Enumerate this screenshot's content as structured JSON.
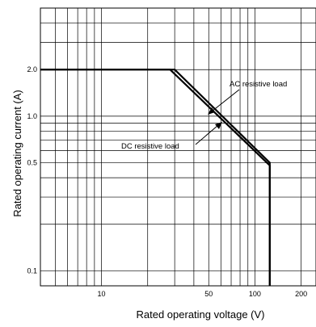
{
  "chart_data": {
    "type": "line",
    "title": "",
    "xlabel": "Rated operating voltage (V)",
    "ylabel": "Rated operating current (A)",
    "x_scale": "log",
    "y_scale": "log",
    "xlim": [
      4,
      250
    ],
    "ylim": [
      0.08,
      5
    ],
    "grid": true,
    "x_ticks": [
      {
        "value": 10,
        "label": "10"
      },
      {
        "value": 50,
        "label": "50"
      },
      {
        "value": 100,
        "label": "100"
      },
      {
        "value": 200,
        "label": "200"
      }
    ],
    "y_ticks": [
      {
        "value": 2.0,
        "label": "2.0"
      },
      {
        "value": 1.0,
        "label": "1.0"
      },
      {
        "value": 0.5,
        "label": "0.5"
      },
      {
        "value": 0.1,
        "label": "0.1"
      }
    ],
    "x_grid": [
      4,
      5,
      6,
      7,
      8,
      9,
      10,
      20,
      30,
      40,
      50,
      60,
      70,
      80,
      90,
      100,
      200
    ],
    "y_grid": [
      0.1,
      0.2,
      0.3,
      0.4,
      0.5,
      0.6,
      0.7,
      0.8,
      0.9,
      1.0,
      2.0,
      3.0,
      4.0
    ],
    "series": [
      {
        "name": "AC resistive load",
        "x": [
          4,
          30,
          125,
          125
        ],
        "y": [
          2.0,
          2.0,
          0.5,
          0.08
        ]
      },
      {
        "name": "DC resistive load",
        "x": [
          4,
          28,
          125,
          125
        ],
        "y": [
          2.0,
          2.0,
          0.48,
          0.08
        ]
      }
    ],
    "annotations": [
      {
        "text": "AC resistive load",
        "series": "AC resistive load"
      },
      {
        "text": "DC resistive load",
        "series": "DC resistive load"
      }
    ]
  }
}
